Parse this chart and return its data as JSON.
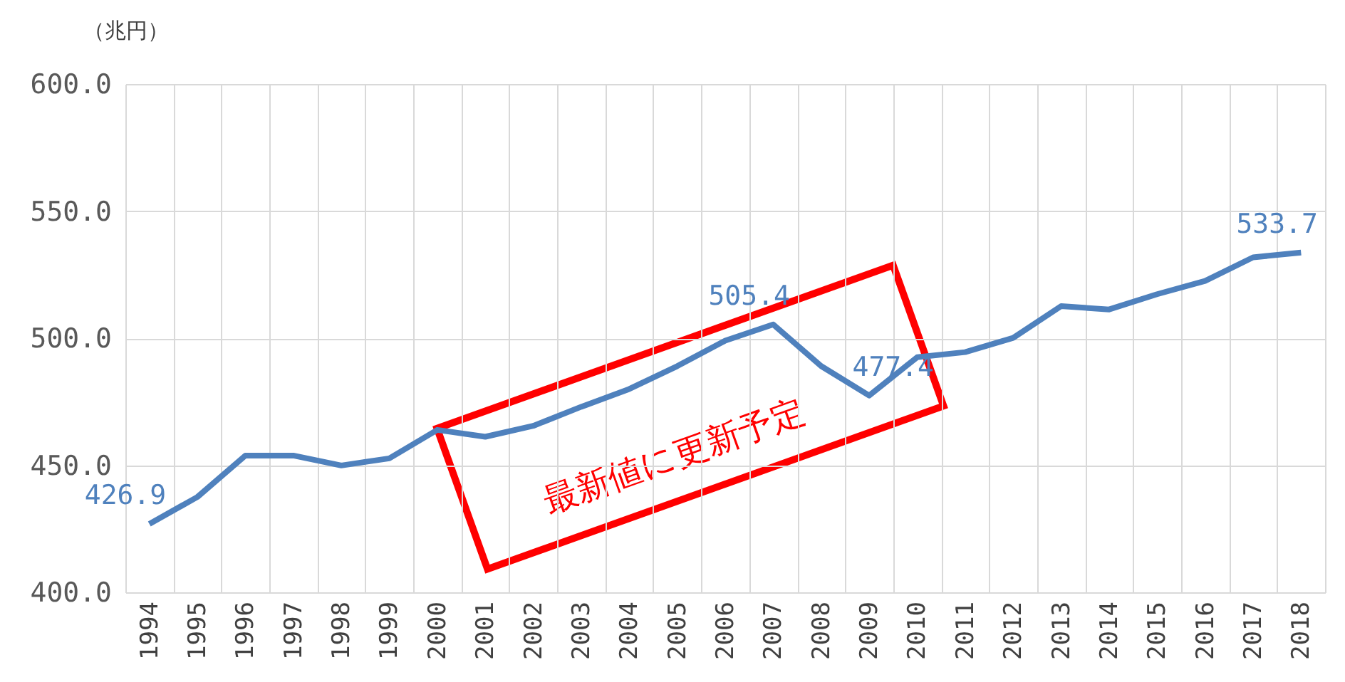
{
  "chart_data": {
    "type": "line",
    "ylabel": "（兆円）",
    "categories": [
      "1994",
      "1995",
      "1996",
      "1997",
      "1998",
      "1999",
      "2000",
      "2001",
      "2002",
      "2003",
      "2004",
      "2005",
      "2006",
      "2007",
      "2008",
      "2009",
      "2010",
      "2011",
      "2012",
      "2013",
      "2014",
      "2015",
      "2016",
      "2017",
      "2018"
    ],
    "series": [
      {
        "color": "#4f81bd",
        "values": [
          426.9,
          437.5,
          453.8,
          453.8,
          449.9,
          452.7,
          463.9,
          461.2,
          465.5,
          473,
          480,
          489,
          499,
          505.4,
          489,
          477.4,
          492.5,
          494.5,
          500.1,
          512.6,
          511.3,
          517.3,
          522.5,
          531.8,
          533.7
        ],
        "value_labels": [
          "426.9",
          null,
          null,
          null,
          null,
          null,
          null,
          null,
          null,
          null,
          null,
          null,
          null,
          "505.4",
          null,
          "477.4",
          null,
          null,
          null,
          null,
          null,
          null,
          null,
          null,
          "533.7"
        ]
      }
    ],
    "ylim": [
      400,
      600
    ],
    "yticks": [
      {
        "value": 400,
        "label": "400.0"
      },
      {
        "value": 450,
        "label": "450.0"
      },
      {
        "value": 500,
        "label": "500.0"
      },
      {
        "value": 550,
        "label": "550.0"
      },
      {
        "value": 600,
        "label": "600.0"
      }
    ],
    "grid": true,
    "marker": "none",
    "line_style": "solid",
    "annotations": [
      "最新値に更新予定"
    ]
  }
}
